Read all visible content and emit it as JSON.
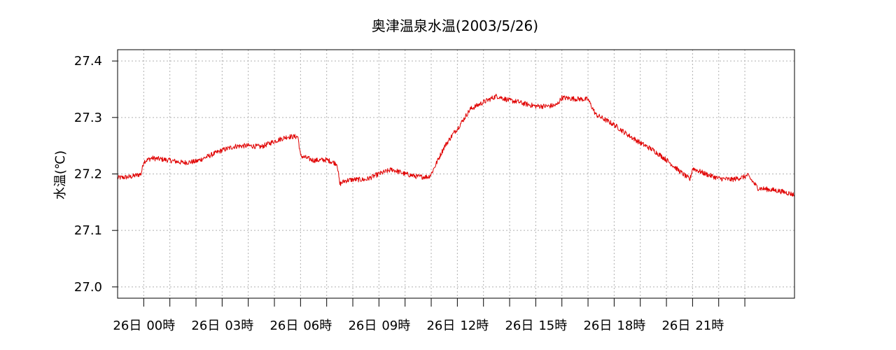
{
  "chart_data": {
    "type": "line",
    "title": "奥津温泉水温(2003/5/26)",
    "ylabel": "水温(℃)",
    "xlabel": "",
    "ylim": [
      26.98,
      27.42
    ],
    "xlim_hours": [
      -1.0,
      24.9
    ],
    "grid": true,
    "y_ticks": [
      27.0,
      27.1,
      27.2,
      27.3,
      27.4
    ],
    "y_tick_labels": [
      "27.0",
      "27.1",
      "27.2",
      "27.3",
      "27.4"
    ],
    "x_ticks_hours": [
      0,
      1,
      2,
      3,
      4,
      5,
      6,
      7,
      8,
      9,
      10,
      11,
      12,
      13,
      14,
      15,
      16,
      17,
      18,
      19,
      20,
      21,
      22,
      23
    ],
    "x_tick_labels": [
      {
        "hour": 0,
        "lines": [
          "26日",
          "00時"
        ]
      },
      {
        "hour": 3,
        "lines": [
          "26日",
          "03時"
        ]
      },
      {
        "hour": 6,
        "lines": [
          "26日",
          "06時"
        ]
      },
      {
        "hour": 9,
        "lines": [
          "26日",
          "09時"
        ]
      },
      {
        "hour": 12,
        "lines": [
          "26日",
          "12時"
        ]
      },
      {
        "hour": 15,
        "lines": [
          "26日",
          "15時"
        ]
      },
      {
        "hour": 18,
        "lines": [
          "26日",
          "18時"
        ]
      },
      {
        "hour": 21,
        "lines": [
          "26日",
          "21時"
        ]
      }
    ],
    "series": [
      {
        "color": "#e00000",
        "x_hours": [
          -1.0,
          -0.5,
          -0.1,
          0.0,
          0.3,
          0.7,
          1.0,
          1.5,
          2.0,
          2.5,
          3.0,
          3.5,
          4.0,
          4.5,
          5.0,
          5.5,
          5.9,
          6.0,
          6.5,
          7.0,
          7.4,
          7.5,
          7.7,
          8.0,
          8.2,
          8.5,
          9.0,
          9.5,
          10.0,
          10.5,
          10.9,
          11.0,
          11.5,
          11.9,
          12.0,
          12.5,
          13.0,
          13.5,
          14.0,
          14.3,
          14.5,
          15.0,
          15.5,
          15.8,
          16.0,
          16.5,
          17.0,
          17.3,
          17.5,
          18.0,
          18.5,
          19.0,
          19.5,
          20.0,
          20.5,
          20.9,
          21.0,
          21.5,
          22.0,
          22.5,
          23.0,
          23.1,
          23.5,
          24.0,
          24.3,
          24.6,
          24.9
        ],
        "y": [
          27.193,
          27.195,
          27.2,
          27.222,
          27.228,
          27.226,
          27.224,
          27.22,
          27.222,
          27.232,
          27.242,
          27.249,
          27.25,
          27.248,
          27.258,
          27.266,
          27.266,
          27.232,
          27.224,
          27.225,
          27.218,
          27.182,
          27.188,
          27.19,
          27.19,
          27.19,
          27.2,
          27.208,
          27.2,
          27.195,
          27.195,
          27.2,
          27.248,
          27.275,
          27.28,
          27.315,
          27.327,
          27.338,
          27.33,
          27.328,
          27.325,
          27.32,
          27.32,
          27.322,
          27.335,
          27.333,
          27.332,
          27.305,
          27.3,
          27.287,
          27.27,
          27.255,
          27.242,
          27.225,
          27.205,
          27.19,
          27.21,
          27.2,
          27.192,
          27.19,
          27.195,
          27.198,
          27.175,
          27.172,
          27.17,
          27.167,
          27.163
        ]
      }
    ]
  }
}
